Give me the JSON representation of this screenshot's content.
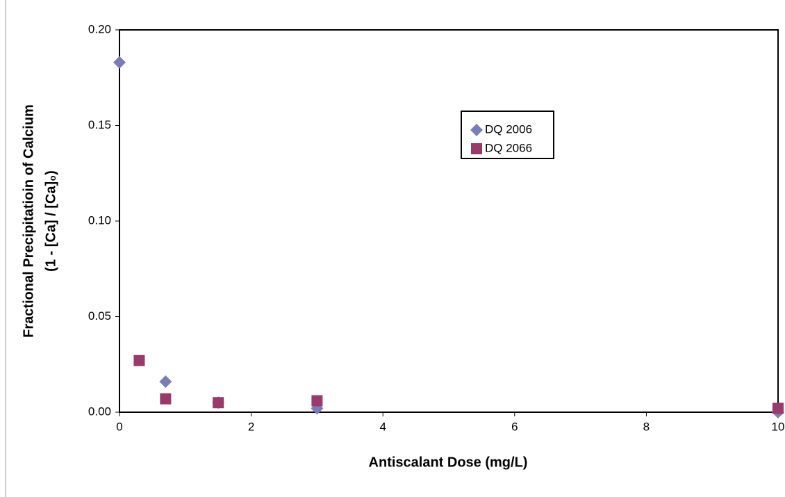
{
  "chart_data": {
    "type": "scatter",
    "x_label": "Antiscalant Dose (mg/L)",
    "y_label": [
      "Fractional Precipitatioin of Calcium",
      "(1 -  [Ca] / [Ca]₀)"
    ],
    "xlim": [
      0,
      10
    ],
    "xticks": [
      0,
      2,
      4,
      6,
      8,
      10
    ],
    "ylim": [
      0,
      0.2
    ],
    "yticks": [
      {
        "value": 0,
        "label": "0.00"
      },
      {
        "value": 0.05,
        "label": "0.05"
      },
      {
        "value": 0.1,
        "label": "0.10"
      },
      {
        "value": 0.15,
        "label": "0.15"
      },
      {
        "value": 0.2,
        "label": "0.20"
      }
    ],
    "grid": false,
    "series": [
      {
        "name": "DQ 2006",
        "color": "#7c7cb8",
        "marker": "diamond",
        "x": [
          0,
          0.7,
          1.5,
          3,
          10
        ],
        "values": [
          0.183,
          0.016,
          0.005,
          0.002,
          0.0
        ]
      },
      {
        "name": "DQ 2066",
        "color": "#983a6a",
        "marker": "square",
        "x": [
          0.3,
          0.7,
          1.5,
          3,
          10
        ],
        "values": [
          0.027,
          0.007,
          0.005,
          0.006,
          0.002
        ]
      }
    ]
  }
}
